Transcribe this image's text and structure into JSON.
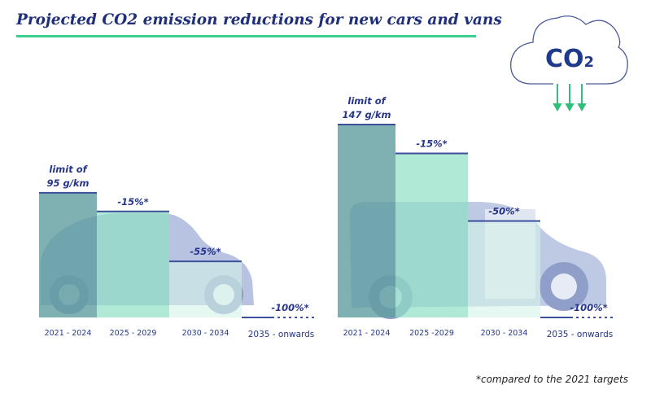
{
  "title": "Projected CO2 emission reductions for new cars and vans",
  "footnote": "*compared to the 2021 targets",
  "cloud": {
    "text": "CO",
    "subscript": "2",
    "icon": "co2-cloud-icon"
  },
  "colors": {
    "title": "#1f2f7a",
    "rule": "#3ccf8e",
    "bar1": "#5f9ea0",
    "bar2": "#8fe0c4",
    "bar3": "#d4f3e8",
    "line": "#3b4f9c",
    "arrow": "#2fbf7a"
  },
  "chart_data": [
    {
      "type": "bar",
      "subject": "cars",
      "categories": [
        "2021 - 2024",
        "2025 - 2029",
        "2030 - 2034",
        "2035 - onwards"
      ],
      "values": [
        95,
        80.75,
        42.75,
        0
      ],
      "annotations": [
        [
          "limit of",
          "95 g/km"
        ],
        [
          "-15%*"
        ],
        [
          "-55%*"
        ],
        [
          "-100%*"
        ]
      ],
      "unit": "g/km",
      "ylim": [
        0,
        150
      ],
      "grid": false
    },
    {
      "type": "bar",
      "subject": "vans",
      "categories": [
        "2021 - 2024",
        "2025 -2029",
        "2030 - 2034",
        "2035 - onwards"
      ],
      "values": [
        147,
        124.95,
        73.5,
        0
      ],
      "annotations": [
        [
          "limit of",
          "147 g/km"
        ],
        [
          "-15%*"
        ],
        [
          "-50%*"
        ],
        [
          "-100%*"
        ]
      ],
      "unit": "g/km",
      "ylim": [
        0,
        150
      ],
      "grid": false
    }
  ]
}
